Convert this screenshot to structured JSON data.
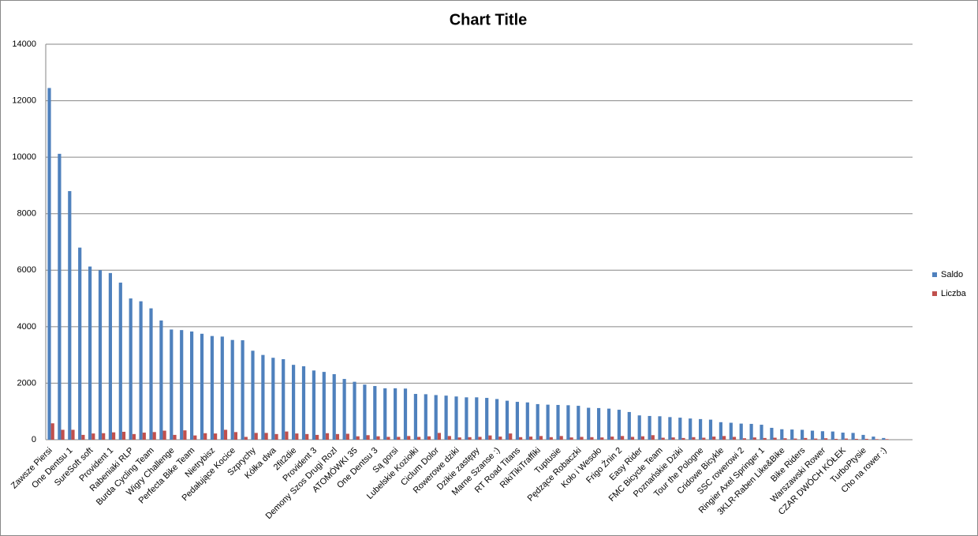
{
  "chart_data": {
    "type": "bar",
    "title": "Chart Title",
    "categories": [
      "Zawsze Piersi",
      null,
      "One Dentsu 1",
      null,
      "SureSoft soft",
      null,
      "Provident 1",
      null,
      "Rabeniaki RLP",
      null,
      "Burda Cycling Team",
      null,
      "Wigry Challenge",
      null,
      "Perfecta Bike Team",
      null,
      "Nietrybisz",
      null,
      "Pedałujące Kocice",
      null,
      "Szprychy",
      null,
      "Kółka dwa",
      null,
      "2fit2die",
      null,
      "Provident 3",
      null,
      "Demony Szos Drugi Rozl",
      null,
      "ATOMÓWKI 35",
      null,
      "One Dentsu 3",
      null,
      "Są gorsi",
      null,
      "Lubelskie Koziołki",
      null,
      "Ciclum Dolor",
      null,
      "Rowerowe dziki",
      null,
      "Dzikie zastępy",
      null,
      "Marne Szanse :)",
      null,
      "RT Road Titans",
      null,
      "RikiTikiTraffiki",
      null,
      "Tuptusie",
      null,
      "Pędzące Robaczki",
      null,
      "Koło i Wesoło",
      null,
      "Frigo Żnin 2",
      null,
      "Easy Rider",
      null,
      "FMC Bicycle Team",
      null,
      "Poznańskie Dziki",
      null,
      "Tour the Pologne",
      null,
      "Cridowe Bicykle",
      null,
      "SSC rowerowi 2",
      null,
      "Ringier Axel Springer 1",
      null,
      "3KLR-Raben Like&Bike",
      null,
      "Bike Riders",
      null,
      "Warszawski Rower",
      null,
      "CZAR DWÓCH KÓŁEK",
      null,
      "TurboPtysie",
      null,
      "Cho na rower :)"
    ],
    "series": [
      {
        "name": "Saldo",
        "color": "#4f81bd",
        "values": [
          12450,
          10120,
          8800,
          6800,
          6130,
          6000,
          5900,
          5560,
          5000,
          4900,
          4650,
          4220,
          3900,
          3880,
          3830,
          3750,
          3670,
          3650,
          3530,
          3520,
          3150,
          3000,
          2900,
          2850,
          2650,
          2600,
          2450,
          2400,
          2320,
          2150,
          2050,
          1950,
          1900,
          1820,
          1820,
          1810,
          1620,
          1610,
          1580,
          1560,
          1530,
          1500,
          1500,
          1480,
          1440,
          1380,
          1340,
          1320,
          1260,
          1240,
          1230,
          1220,
          1200,
          1130,
          1120,
          1100,
          1060,
          980,
          860,
          840,
          830,
          800,
          780,
          750,
          730,
          710,
          620,
          600,
          570,
          560,
          530,
          420,
          370,
          360,
          350,
          320,
          300,
          290,
          250,
          240,
          170,
          110,
          60
        ]
      },
      {
        "name": "Liczba",
        "color": "#c0504d",
        "values": [
          580,
          350,
          350,
          170,
          220,
          230,
          260,
          280,
          200,
          250,
          270,
          320,
          170,
          330,
          150,
          230,
          220,
          350,
          270,
          100,
          240,
          240,
          200,
          290,
          220,
          200,
          170,
          230,
          200,
          210,
          120,
          160,
          120,
          100,
          100,
          130,
          100,
          120,
          240,
          130,
          80,
          90,
          100,
          150,
          110,
          220,
          90,
          110,
          130,
          90,
          130,
          80,
          100,
          90,
          80,
          110,
          130,
          100,
          120,
          160,
          70,
          80,
          60,
          90,
          70,
          110,
          130,
          100,
          50,
          80,
          60,
          70,
          50,
          40,
          60,
          40,
          50,
          30,
          40,
          30,
          30,
          20,
          20
        ]
      }
    ],
    "ylim": [
      0,
      14000
    ],
    "yticks": [
      0,
      2000,
      4000,
      6000,
      8000,
      10000,
      12000,
      14000
    ],
    "grid": true,
    "legend": "right"
  }
}
